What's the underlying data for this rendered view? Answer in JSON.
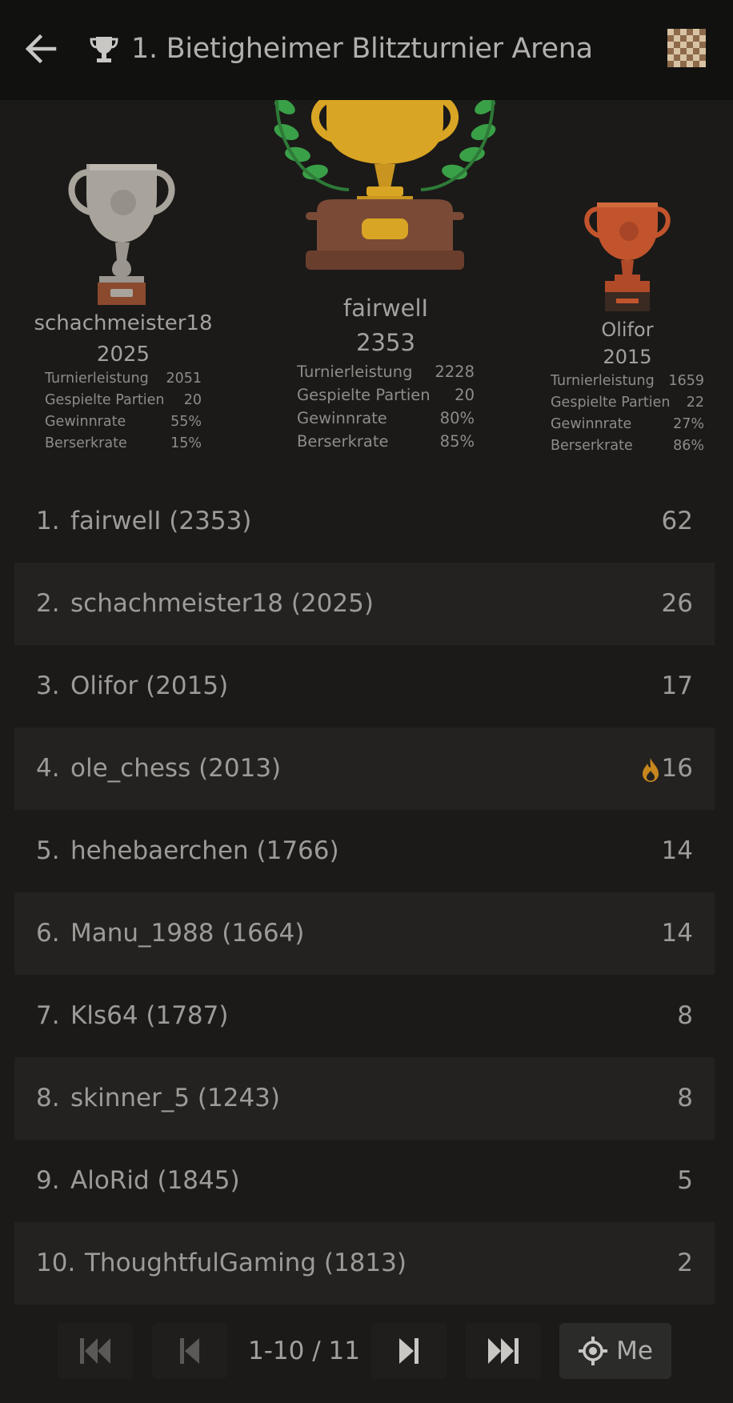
{
  "header": {
    "title": "1. Bietigheimer Blitzturnier Arena",
    "back_icon": "arrow-left-icon",
    "trophy_icon": "trophy-icon",
    "board_icon": "chessboard-icon"
  },
  "podium": {
    "first": {
      "name": "fairwelI",
      "rating": "2353",
      "stats": [
        {
          "label": "Turnierleistung",
          "value": "2228"
        },
        {
          "label": "Gespielte Partien",
          "value": "20"
        },
        {
          "label": "Gewinnrate",
          "value": "80%"
        },
        {
          "label": "Berserkrate",
          "value": "85%"
        }
      ]
    },
    "second": {
      "name": "schachmeister18",
      "rating": "2025",
      "stats": [
        {
          "label": "Turnierleistung",
          "value": "2051"
        },
        {
          "label": "Gespielte Partien",
          "value": "20"
        },
        {
          "label": "Gewinnrate",
          "value": "55%"
        },
        {
          "label": "Berserkrate",
          "value": "15%"
        }
      ]
    },
    "third": {
      "name": "Olifor",
      "rating": "2015",
      "stats": [
        {
          "label": "Turnierleistung",
          "value": "1659"
        },
        {
          "label": "Gespielte Partien",
          "value": "22"
        },
        {
          "label": "Gewinnrate",
          "value": "27%"
        },
        {
          "label": "Berserkrate",
          "value": "86%"
        }
      ]
    }
  },
  "standings": [
    {
      "rank": "1.",
      "player": "fairwelI (2353)",
      "score": "62"
    },
    {
      "rank": "2.",
      "player": "schachmeister18 (2025)",
      "score": "26"
    },
    {
      "rank": "3.",
      "player": "Olifor (2015)",
      "score": "17"
    },
    {
      "rank": "4.",
      "player": "ole_chess (2013)",
      "score": "16",
      "fire": true
    },
    {
      "rank": "5.",
      "player": "hehebaerchen (1766)",
      "score": "14"
    },
    {
      "rank": "6.",
      "player": "Manu_1988 (1664)",
      "score": "14"
    },
    {
      "rank": "7.",
      "player": "Kls64 (1787)",
      "score": "8"
    },
    {
      "rank": "8.",
      "player": "skinner_5 (1243)",
      "score": "8"
    },
    {
      "rank": "9.",
      "player": "AloRid (1845)",
      "score": "5"
    },
    {
      "rank": "10.",
      "player": "ThoughtfulGaming (1813)",
      "score": "2"
    }
  ],
  "pager": {
    "info": "1-10 / 11",
    "me_label": "Me"
  },
  "colors": {
    "gold": "#d9a524",
    "silver": "#a8a49c",
    "bronze": "#c2542d",
    "laurel": "#3aa048",
    "fire": "#c7861e"
  }
}
